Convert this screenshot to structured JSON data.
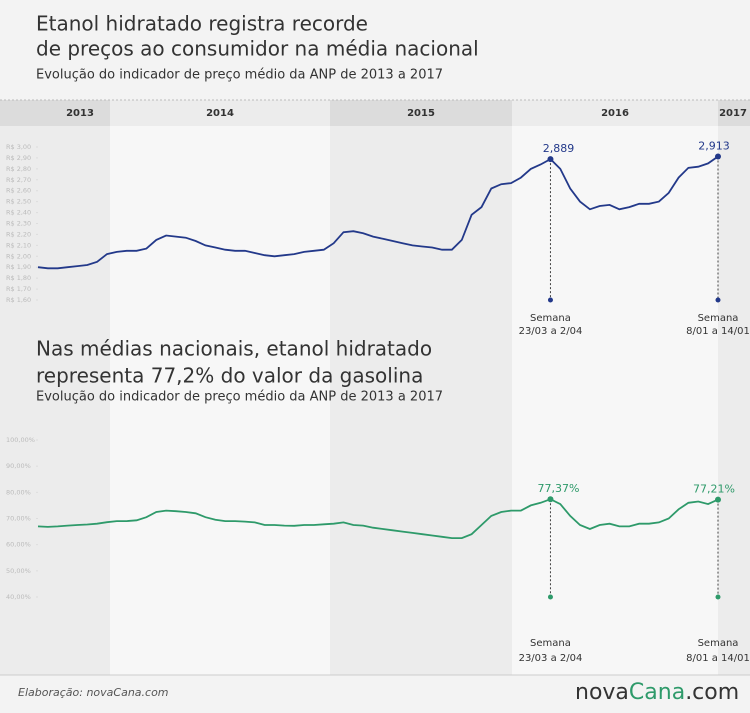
{
  "chart_data": [
    {
      "type": "line",
      "title": [
        "Etanol hidratado registra recorde",
        "de preços ao consumidor na média nacional"
      ],
      "subtitle": "Evolução do indicador de preço médio da ANP de 2013 a 2017",
      "years": [
        "2013",
        "2014",
        "2015",
        "2016",
        "2017"
      ],
      "ylim": [
        1.6,
        3.0
      ],
      "yticks": [
        {
          "value": 1.6,
          "label": "R$ 1,60"
        },
        {
          "value": 1.7,
          "label": "R$ 1,70"
        },
        {
          "value": 1.8,
          "label": "R$ 1,80"
        },
        {
          "value": 1.9,
          "label": "R$ 1,90"
        },
        {
          "value": 2.0,
          "label": "R$ 2,00"
        },
        {
          "value": 2.1,
          "label": "R$ 2,10"
        },
        {
          "value": 2.2,
          "label": "R$ 2,20"
        },
        {
          "value": 2.3,
          "label": "R$ 2,30"
        },
        {
          "value": 2.4,
          "label": "R$ 2,40"
        },
        {
          "value": 2.5,
          "label": "R$ 2,50"
        },
        {
          "value": 2.6,
          "label": "R$ 2,60"
        },
        {
          "value": 2.7,
          "label": "R$ 2,70"
        },
        {
          "value": 2.8,
          "label": "R$ 2,80"
        },
        {
          "value": 2.9,
          "label": "R$ 2,90"
        },
        {
          "value": 3.0,
          "label": "R$ 3,00"
        }
      ],
      "series": [
        {
          "color": "#23398a",
          "values": [
            1.9,
            1.89,
            1.89,
            1.9,
            1.91,
            1.92,
            1.95,
            2.02,
            2.04,
            2.05,
            2.05,
            2.07,
            2.15,
            2.19,
            2.18,
            2.17,
            2.14,
            2.1,
            2.08,
            2.06,
            2.05,
            2.05,
            2.03,
            2.01,
            2.0,
            2.01,
            2.02,
            2.04,
            2.05,
            2.06,
            2.12,
            2.22,
            2.23,
            2.21,
            2.18,
            2.16,
            2.14,
            2.12,
            2.1,
            2.09,
            2.08,
            2.06,
            2.06,
            2.15,
            2.38,
            2.45,
            2.62,
            2.66,
            2.67,
            2.72,
            2.8,
            2.84,
            2.889,
            2.8,
            2.62,
            2.5,
            2.43,
            2.46,
            2.47,
            2.43,
            2.45,
            2.48,
            2.48,
            2.5,
            2.58,
            2.72,
            2.81,
            2.82,
            2.85,
            2.913
          ],
          "value_labels": [
            null,
            null,
            null,
            null,
            null,
            null,
            null,
            null,
            null,
            null,
            null,
            null,
            null,
            null,
            null,
            null,
            null,
            null,
            null,
            null,
            null,
            null,
            null,
            null,
            null,
            null,
            null,
            null,
            null,
            null,
            null,
            null,
            null,
            null,
            null,
            null,
            null,
            null,
            null,
            null,
            null,
            null,
            null,
            null,
            null,
            null,
            null,
            null,
            null,
            null,
            null,
            null,
            "2,889",
            null,
            null,
            null,
            null,
            null,
            null,
            null,
            null,
            null,
            null,
            null,
            null,
            null,
            null,
            null,
            null,
            "2,913"
          ]
        }
      ],
      "notes": [
        [
          "Semana",
          "23/03 a 2/04"
        ],
        [
          "Semana",
          "8/01 a 14/01"
        ]
      ]
    },
    {
      "type": "line",
      "title": [
        "Nas médias nacionais, etanol hidratado",
        "representa 77,2% do valor da gasolina"
      ],
      "subtitle": "Evolução do indicador de preço médio da ANP de 2013 a 2017",
      "ylim": [
        40,
        100
      ],
      "yticks": [
        {
          "value": 40,
          "label": "40,00%"
        },
        {
          "value": 50,
          "label": "50,00%"
        },
        {
          "value": 60,
          "label": "60,00%"
        },
        {
          "value": 70,
          "label": "70,00%"
        },
        {
          "value": 80,
          "label": "80,00%"
        },
        {
          "value": 90,
          "label": "90,00%"
        },
        {
          "value": 100,
          "label": "100,00%"
        }
      ],
      "series": [
        {
          "color": "#2e9a6a",
          "values": [
            67.0,
            66.8,
            67.0,
            67.3,
            67.5,
            67.7,
            68.0,
            68.6,
            69.0,
            69.0,
            69.3,
            70.5,
            72.5,
            73.0,
            72.8,
            72.5,
            72.0,
            70.5,
            69.5,
            69.0,
            69.0,
            68.8,
            68.5,
            67.5,
            67.5,
            67.3,
            67.2,
            67.5,
            67.5,
            67.8,
            68.0,
            68.5,
            67.5,
            67.3,
            66.5,
            66.0,
            65.5,
            65.0,
            64.5,
            64.0,
            63.5,
            63.0,
            62.5,
            62.5,
            64.0,
            67.5,
            71.0,
            72.5,
            73.0,
            73.0,
            75.0,
            76.0,
            77.37,
            75.5,
            71.0,
            67.5,
            66.0,
            67.5,
            68.0,
            67.0,
            67.0,
            68.0,
            68.0,
            68.5,
            70.0,
            73.5,
            76.0,
            76.5,
            75.5,
            77.21
          ],
          "value_labels": [
            null,
            null,
            null,
            null,
            null,
            null,
            null,
            null,
            null,
            null,
            null,
            null,
            null,
            null,
            null,
            null,
            null,
            null,
            null,
            null,
            null,
            null,
            null,
            null,
            null,
            null,
            null,
            null,
            null,
            null,
            null,
            null,
            null,
            null,
            null,
            null,
            null,
            null,
            null,
            null,
            null,
            null,
            null,
            null,
            null,
            null,
            null,
            null,
            null,
            null,
            null,
            null,
            "77,37%",
            null,
            null,
            null,
            null,
            null,
            null,
            null,
            null,
            null,
            null,
            null,
            null,
            null,
            null,
            null,
            null,
            "77,21%"
          ]
        }
      ],
      "notes": [
        [
          "Semana",
          "23/03 a 2/04"
        ],
        [
          "Semana",
          "8/01 a 14/01"
        ]
      ]
    }
  ],
  "footer": {
    "credit": "Elaboração: novaCana.com",
    "logo": [
      "nova",
      "Cana",
      ".com"
    ]
  }
}
